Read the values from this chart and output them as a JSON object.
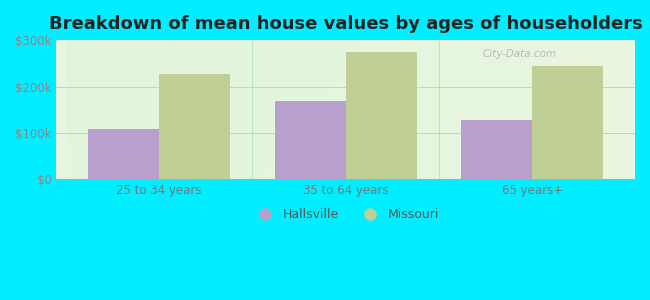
{
  "title": "Breakdown of mean house values by ages of householders",
  "categories": [
    "25 to 34 years",
    "35 to 64 years",
    "65 years+"
  ],
  "hallsville_values": [
    108000,
    168000,
    128000
  ],
  "missouri_values": [
    228000,
    275000,
    245000
  ],
  "hallsville_color": "#b89fcc",
  "missouri_color": "#bfcf96",
  "ylim": [
    0,
    300000
  ],
  "yticks": [
    0,
    100000,
    200000,
    300000
  ],
  "ytick_labels": [
    "$0",
    "$100k",
    "$200k",
    "$300k"
  ],
  "outer_bg": "#00eeff",
  "bar_width": 0.38,
  "legend_labels": [
    "Hallsville",
    "Missouri"
  ],
  "title_fontsize": 13,
  "watermark": "City-Data.com"
}
